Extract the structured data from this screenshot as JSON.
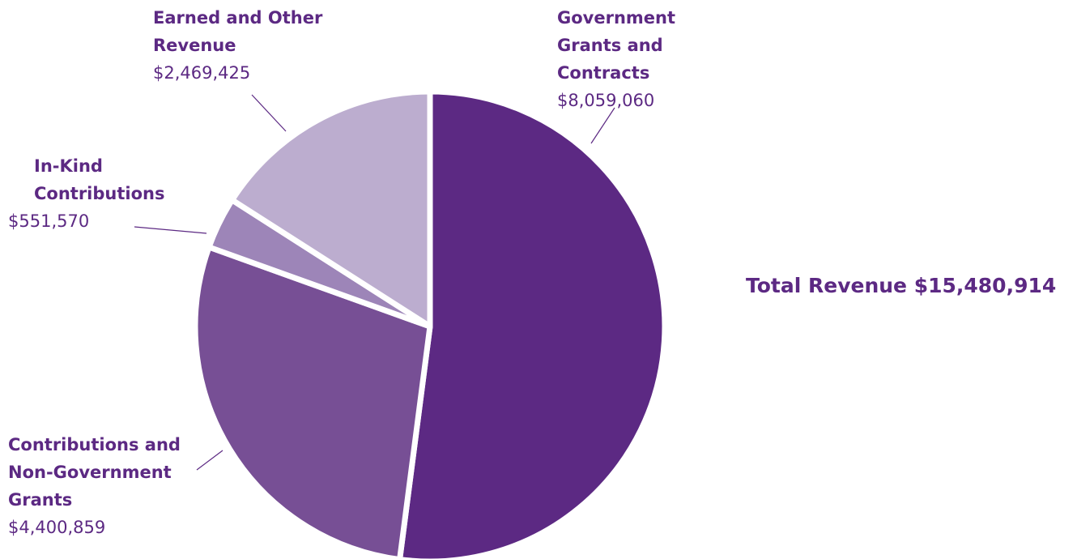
{
  "chart_data": {
    "type": "pie",
    "slices": [
      {
        "key": "gov",
        "name_lines": [
          "Government",
          "Grants and",
          "Contracts"
        ],
        "label": "Government Grants and Contracts",
        "value": 8059060,
        "value_label": "$8,059,060",
        "color": "#5c2983"
      },
      {
        "key": "contrib",
        "name_lines": [
          "Contributions and",
          "Non-Government",
          "Grants"
        ],
        "label": "Contributions and Non-Government Grants",
        "value": 4400859,
        "value_label": "$4,400,859",
        "color": "#774f95"
      },
      {
        "key": "inkind",
        "name_lines": [
          "In-Kind",
          "Contributions"
        ],
        "label": "In-Kind Contributions",
        "value": 551570,
        "value_label": "$551,570",
        "color": "#9d85b8"
      },
      {
        "key": "earned",
        "name_lines": [
          "Earned and Other",
          "Revenue"
        ],
        "label": "Earned and Other Revenue",
        "value": 2469425,
        "value_label": "$2,469,425",
        "color": "#bcadcf"
      }
    ],
    "start_angle": "12 o'clock",
    "direction": "clockwise"
  },
  "total": {
    "text": "Total Revenue $15,480,914"
  }
}
